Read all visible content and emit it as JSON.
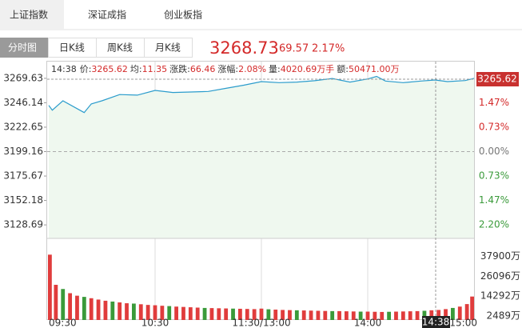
{
  "tabs": [
    "上证指数",
    "深证成指",
    "创业板指"
  ],
  "view_tabs": [
    "分时图",
    "日K线",
    "周K线",
    "月K线"
  ],
  "quote": {
    "price": "3268.73",
    "change": "69.57",
    "change_pct": "2.17%"
  },
  "info": {
    "time": "14:38",
    "items": [
      {
        "label": "价:",
        "value": "3265.62"
      },
      {
        "label": "均:",
        "value": "11.35"
      },
      {
        "label": "涨跌:",
        "value": "66.46"
      },
      {
        "label": "涨幅:",
        "value": "2.08%"
      },
      {
        "label": "量:",
        "value": "4020.69万手"
      },
      {
        "label": "额:",
        "value": "50471.00万"
      }
    ]
  },
  "crosshair": {
    "time": "14:38",
    "price": "3265.62"
  },
  "chart_data": [
    {
      "type": "line",
      "color": "#2b9ccc",
      "area_color": "#eff8ef",
      "x": [
        0,
        2,
        8,
        20,
        24,
        30,
        40,
        50,
        60,
        70,
        80,
        90,
        100,
        110,
        120,
        130,
        140,
        150,
        160,
        170,
        180,
        185,
        190,
        200,
        210,
        218,
        225,
        235,
        240
      ],
      "values": [
        3243.6,
        3239.0,
        3248.0,
        3236.7,
        3245.0,
        3248.0,
        3254.0,
        3253.5,
        3258.0,
        3256.0,
        3256.5,
        3257.0,
        3260.0,
        3263.0,
        3266.5,
        3265.5,
        3266.0,
        3267.3,
        3269.5,
        3266.0,
        3269.0,
        3271.5,
        3267.0,
        3265.5,
        3267.0,
        3268.0,
        3266.5,
        3267.5,
        3269.6
      ],
      "xlim": [
        0,
        240
      ],
      "ylim": [
        3115.7,
        3285.7
      ],
      "yticks": [
        3269.63,
        3246.14,
        3222.65,
        3199.16,
        3175.67,
        3152.18,
        3128.69
      ],
      "baseline": 3199.16,
      "y2lim": [
        -2.609,
        2.705
      ],
      "y2ticks": [
        {
          "value": 1.47,
          "label": "1.47%"
        },
        {
          "value": 0.73,
          "label": "0.73%"
        },
        {
          "value": 0,
          "label": "0.00%"
        },
        {
          "value": -0.73,
          "label": "0.73%"
        },
        {
          "value": -1.47,
          "label": "1.47%"
        },
        {
          "value": -2.2,
          "label": "2.20%"
        }
      ]
    },
    {
      "type": "bar",
      "x": [
        0,
        4,
        8,
        12,
        16,
        20,
        24,
        28,
        32,
        36,
        40,
        44,
        48,
        52,
        56,
        60,
        64,
        68,
        72,
        76,
        80,
        84,
        88,
        92,
        96,
        100,
        104,
        108,
        112,
        116,
        120,
        124,
        128,
        132,
        136,
        140,
        144,
        148,
        152,
        156,
        160,
        164,
        168,
        172,
        176,
        180,
        184,
        188,
        192,
        196,
        200,
        204,
        208,
        212,
        216,
        220,
        224,
        228,
        232,
        236,
        240
      ],
      "values": [
        39000,
        21000,
        18500,
        16000,
        14500,
        13800,
        13000,
        12200,
        11500,
        11000,
        10500,
        10000,
        9800,
        9400,
        9000,
        8800,
        8500,
        8300,
        8000,
        7800,
        7600,
        7400,
        7200,
        7100,
        7000,
        6900,
        6800,
        6700,
        6600,
        6500,
        6800,
        6400,
        6200,
        6000,
        5900,
        5800,
        5700,
        5600,
        5500,
        5400,
        5300,
        5300,
        5200,
        5100,
        5000,
        5000,
        4900,
        4800,
        4900,
        5000,
        5100,
        5200,
        5300,
        5500,
        5800,
        6000,
        6500,
        7200,
        8000,
        9500,
        14000
      ],
      "colors": [
        "#e03c3c",
        "#e03c3c",
        "#3a9a3a",
        "#e03c3c",
        "#e03c3c",
        "#3a9a3a",
        "#e03c3c",
        "#e03c3c",
        "#e03c3c",
        "#3a9a3a",
        "#e03c3c",
        "#e03c3c",
        "#3a9a3a",
        "#e03c3c",
        "#e03c3c",
        "#e03c3c",
        "#e03c3c",
        "#3a9a3a",
        "#e03c3c",
        "#e03c3c",
        "#e03c3c",
        "#e03c3c",
        "#3a9a3a",
        "#e03c3c",
        "#e03c3c",
        "#e03c3c",
        "#3a9a3a",
        "#e03c3c",
        "#e03c3c",
        "#e03c3c",
        "#e03c3c",
        "#3a9a3a",
        "#e03c3c",
        "#e03c3c",
        "#e03c3c",
        "#3a9a3a",
        "#e03c3c",
        "#e03c3c",
        "#e03c3c",
        "#e03c3c",
        "#3a9a3a",
        "#e03c3c",
        "#e03c3c",
        "#e03c3c",
        "#3a9a3a",
        "#e03c3c",
        "#e03c3c",
        "#e03c3c",
        "#3a9a3a",
        "#e03c3c",
        "#e03c3c",
        "#e03c3c",
        "#e03c3c",
        "#3a9a3a",
        "#e03c3c",
        "#e03c3c",
        "#e03c3c",
        "#3a9a3a",
        "#e03c3c",
        "#e03c3c",
        "#e03c3c"
      ],
      "xlim": [
        0,
        240
      ],
      "xticks": [
        {
          "value": 0,
          "label": "09:30"
        },
        {
          "value": 60,
          "label": "10:30"
        },
        {
          "value": 120,
          "label": "11:30/13:00"
        },
        {
          "value": 180,
          "label": "14:00"
        },
        {
          "value": 240,
          "label": "15:00"
        }
      ],
      "ylim": [
        0,
        48700
      ],
      "yticks": [
        {
          "value": 37900,
          "label": "37900万"
        },
        {
          "value": 26096,
          "label": "26096万"
        },
        {
          "value": 14292,
          "label": "14292万"
        },
        {
          "value": 2489,
          "label": "2489万"
        }
      ]
    }
  ]
}
